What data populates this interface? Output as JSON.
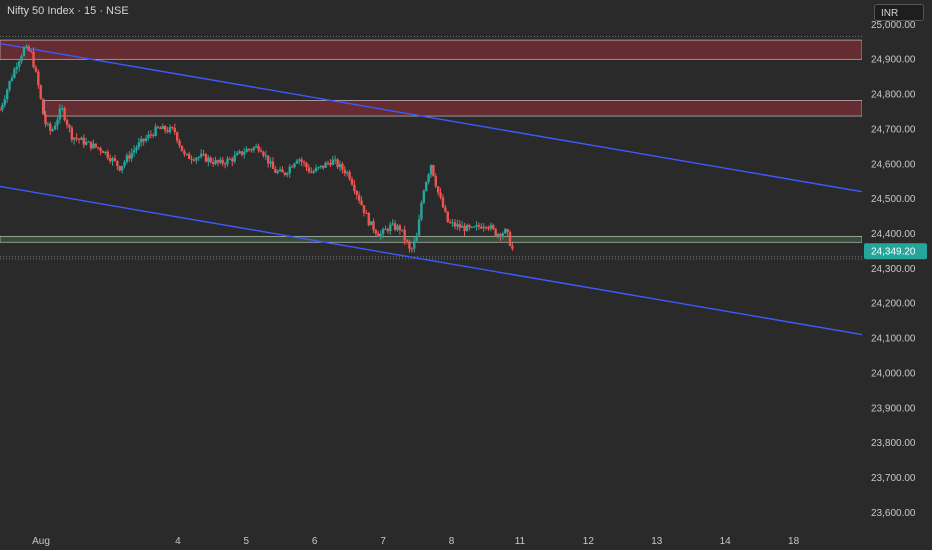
{
  "header": {
    "title": "Nifty 50 Index · 15 · NSE",
    "currency": "INR"
  },
  "last_price": "24,349.20",
  "colors": {
    "up": "#26a69a",
    "down": "#ef5350",
    "trendline": "#3d5afe",
    "resistance_zone": "#7a2e35",
    "support_zone": "#3d5a3d",
    "background": "#2a2a2a"
  },
  "chart_data": {
    "type": "candlestick",
    "title": "Nifty 50 Index · 15 · NSE",
    "y_ticks": [
      "25,000.00",
      "24,900.00",
      "24,800.00",
      "24,700.00",
      "24,600.00",
      "24,500.00",
      "24,400.00",
      "24,300.00",
      "24,200.00",
      "24,100.00",
      "24,000.00",
      "23,900.00",
      "23,800.00",
      "23,700.00",
      "23,600.00"
    ],
    "y_tick_values": [
      25000,
      24900,
      24800,
      24700,
      24600,
      24500,
      24400,
      24300,
      24200,
      24100,
      24000,
      23900,
      23800,
      23700,
      23600
    ],
    "ylim": [
      23555,
      25070
    ],
    "x_ticks": [
      "Aug",
      "4",
      "5",
      "6",
      "7",
      "8",
      "11",
      "12",
      "13",
      "14",
      "18"
    ],
    "x_tick_index": [
      1,
      3,
      4,
      5,
      6,
      7,
      8,
      9,
      10,
      11,
      12
    ],
    "xlim": [
      0.4,
      13.0
    ],
    "zones": [
      {
        "kind": "resistance",
        "low": 24900,
        "high": 24955
      },
      {
        "kind": "resistance",
        "low": 24737,
        "high": 24782
      },
      {
        "kind": "support",
        "low": 24375,
        "high": 24392
      }
    ],
    "trendlines": [
      {
        "x1": 0.4,
        "y1": 24945,
        "x2": 13.0,
        "y2": 24520
      },
      {
        "x1": 0.4,
        "y1": 24535,
        "x2": 13.0,
        "y2": 24110
      }
    ],
    "price_path": [
      {
        "x": 0.4,
        "y": 24755
      },
      {
        "x": 0.55,
        "y": 24840
      },
      {
        "x": 0.65,
        "y": 24890
      },
      {
        "x": 0.75,
        "y": 24930
      },
      {
        "x": 0.85,
        "y": 24920
      },
      {
        "x": 0.95,
        "y": 24835
      },
      {
        "x": 1.05,
        "y": 24720
      },
      {
        "x": 1.15,
        "y": 24690
      },
      {
        "x": 1.3,
        "y": 24760
      },
      {
        "x": 1.45,
        "y": 24680
      },
      {
        "x": 1.65,
        "y": 24660
      },
      {
        "x": 1.9,
        "y": 24640
      },
      {
        "x": 2.15,
        "y": 24590
      },
      {
        "x": 2.4,
        "y": 24650
      },
      {
        "x": 2.7,
        "y": 24700
      },
      {
        "x": 2.95,
        "y": 24695
      },
      {
        "x": 3.1,
        "y": 24620
      },
      {
        "x": 3.35,
        "y": 24620
      },
      {
        "x": 3.6,
        "y": 24600
      },
      {
        "x": 3.8,
        "y": 24615
      },
      {
        "x": 4.0,
        "y": 24640
      },
      {
        "x": 4.2,
        "y": 24650
      },
      {
        "x": 4.4,
        "y": 24580
      },
      {
        "x": 4.55,
        "y": 24570
      },
      {
        "x": 4.75,
        "y": 24620
      },
      {
        "x": 4.95,
        "y": 24575
      },
      {
        "x": 5.1,
        "y": 24590
      },
      {
        "x": 5.25,
        "y": 24610
      },
      {
        "x": 5.5,
        "y": 24570
      },
      {
        "x": 5.65,
        "y": 24500
      },
      {
        "x": 5.8,
        "y": 24430
      },
      {
        "x": 5.95,
        "y": 24395
      },
      {
        "x": 6.1,
        "y": 24420
      },
      {
        "x": 6.25,
        "y": 24415
      },
      {
        "x": 6.4,
        "y": 24345
      },
      {
        "x": 6.5,
        "y": 24395
      },
      {
        "x": 6.58,
        "y": 24520
      },
      {
        "x": 6.7,
        "y": 24600
      },
      {
        "x": 6.8,
        "y": 24520
      },
      {
        "x": 6.95,
        "y": 24430
      },
      {
        "x": 7.1,
        "y": 24420
      },
      {
        "x": 7.3,
        "y": 24410
      },
      {
        "x": 7.5,
        "y": 24430
      },
      {
        "x": 7.65,
        "y": 24400
      },
      {
        "x": 7.8,
        "y": 24405
      },
      {
        "x": 7.9,
        "y": 24349
      }
    ]
  }
}
